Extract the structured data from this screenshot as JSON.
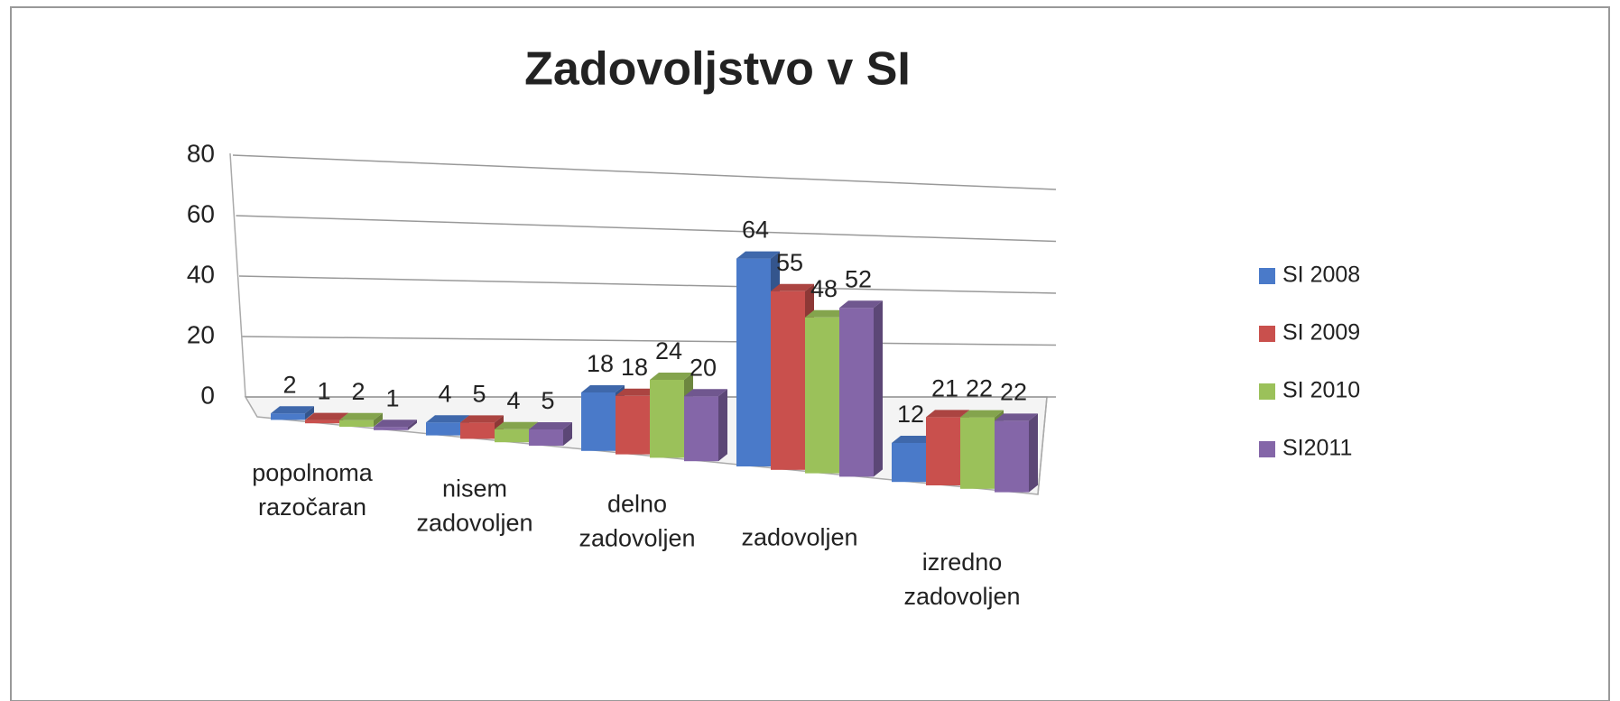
{
  "chart_data": {
    "type": "bar3d",
    "title": "Zadovoljstvo v SI",
    "categories": [
      "popolnoma razočaran",
      "nisem zadovoljen",
      "delno zadovoljen",
      "zadovoljen",
      "izredno zadovoljen"
    ],
    "series": [
      {
        "name": "SI 2008",
        "color": "#4a7ac9",
        "values": [
          2,
          4,
          18,
          64,
          12
        ]
      },
      {
        "name": "SI 2009",
        "color": "#c9504d",
        "values": [
          1,
          5,
          18,
          55,
          21
        ]
      },
      {
        "name": "SI 2010",
        "color": "#9bc15a",
        "values": [
          2,
          4,
          24,
          48,
          22
        ]
      },
      {
        "name": "SI2011",
        "color": "#8466a8",
        "values": [
          1,
          5,
          20,
          52,
          22
        ]
      }
    ],
    "ylim": [
      0,
      80
    ],
    "yticks": [
      0,
      20,
      40,
      60,
      80
    ],
    "grid": true
  }
}
